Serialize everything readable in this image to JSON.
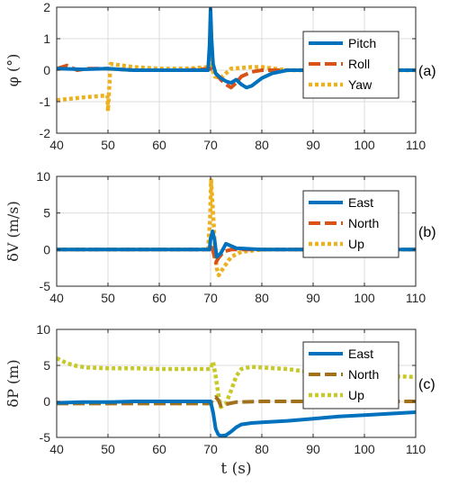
{
  "chart_data": [
    {
      "type": "line",
      "panel_label": "(a)",
      "ylabel": "φ (°)",
      "xlim": [
        40,
        110
      ],
      "ylim": [
        -2,
        2
      ],
      "xticks": [
        40,
        50,
        60,
        70,
        80,
        90,
        100,
        110
      ],
      "yticks": [
        -2,
        -1,
        0,
        1,
        2
      ],
      "grid": true,
      "legend_position": "top-right",
      "series": [
        {
          "name": "Pitch",
          "color": "#0072BD",
          "style": "solid",
          "x": [
            40,
            45,
            50,
            55,
            60,
            65,
            69.5,
            69.8,
            70,
            70.2,
            70.5,
            71,
            72,
            73,
            74,
            75,
            76,
            77,
            78,
            80,
            82,
            85,
            90,
            95,
            100,
            105,
            110
          ],
          "y": [
            0.05,
            0.03,
            0.05,
            0.0,
            0.0,
            0.0,
            0.0,
            0.8,
            1.95,
            1.0,
            0.2,
            -0.1,
            -0.25,
            -0.35,
            -0.4,
            -0.3,
            -0.45,
            -0.55,
            -0.5,
            -0.25,
            -0.1,
            0.0,
            0.0,
            0.0,
            0.0,
            0.0,
            0.0
          ]
        },
        {
          "name": "Roll",
          "color": "#D95319",
          "style": "dashed",
          "x": [
            40,
            42,
            44,
            46,
            50,
            55,
            60,
            65,
            70,
            71,
            72,
            73,
            74,
            75,
            76,
            78,
            80,
            85,
            90,
            100,
            110
          ],
          "y": [
            0.05,
            0.15,
            0.0,
            0.05,
            0.05,
            0.0,
            0.0,
            0.0,
            0.05,
            -0.1,
            -0.3,
            -0.45,
            -0.55,
            -0.4,
            -0.2,
            -0.05,
            0.0,
            0.0,
            0.0,
            0.0,
            0.0
          ]
        },
        {
          "name": "Yaw",
          "color": "#EDB120",
          "style": "dotted",
          "x": [
            40,
            43,
            46,
            49.9,
            50,
            50.5,
            55,
            60,
            65,
            69.9,
            70,
            70.3,
            70.8,
            72,
            74,
            78,
            80,
            85,
            90,
            100,
            110
          ],
          "y": [
            -0.95,
            -0.9,
            -0.85,
            -0.8,
            -1.3,
            0.2,
            0.1,
            0.05,
            0.05,
            0.1,
            0.45,
            0.1,
            -0.2,
            -0.25,
            0.05,
            0.1,
            0.1,
            0.0,
            0.0,
            0.0,
            0.0
          ]
        }
      ]
    },
    {
      "type": "line",
      "panel_label": "(b)",
      "ylabel": "δV (m/s)",
      "xlim": [
        40,
        110
      ],
      "ylim": [
        -5,
        10
      ],
      "xticks": [
        40,
        50,
        60,
        70,
        80,
        90,
        100,
        110
      ],
      "yticks": [
        -5,
        0,
        5,
        10
      ],
      "grid": true,
      "legend_position": "top-right",
      "series": [
        {
          "name": "East",
          "color": "#0072BD",
          "style": "solid",
          "x": [
            40,
            50,
            60,
            69.8,
            70,
            70.4,
            70.8,
            71.2,
            72,
            73,
            75,
            80,
            90,
            100,
            110
          ],
          "y": [
            0,
            0,
            0,
            0,
            1.5,
            2.5,
            1.2,
            -1.0,
            -0.5,
            0.8,
            0.2,
            0,
            0,
            0,
            0
          ]
        },
        {
          "name": "North",
          "color": "#D95319",
          "style": "dashed",
          "x": [
            40,
            50,
            60,
            69.8,
            70.2,
            70.6,
            71,
            71.5,
            72.5,
            74,
            80,
            90,
            100,
            110
          ],
          "y": [
            0,
            0,
            0,
            0,
            0.8,
            -0.5,
            -1.8,
            -1.2,
            -0.3,
            0,
            0,
            0,
            0,
            0
          ]
        },
        {
          "name": "Up",
          "color": "#EDB120",
          "style": "dotted",
          "x": [
            40,
            50,
            60,
            69.5,
            69.9,
            70.1,
            70.4,
            70.8,
            71.2,
            71.6,
            72.5,
            74,
            76,
            80,
            90,
            100,
            110
          ],
          "y": [
            0,
            0,
            0,
            0,
            4.0,
            9.5,
            6.0,
            1.0,
            -2.5,
            -3.5,
            -2.5,
            -1.0,
            -0.3,
            0,
            0,
            0,
            0
          ]
        }
      ]
    },
    {
      "type": "line",
      "panel_label": "(c)",
      "ylabel": "δP (m)",
      "xlabel": "t (s)",
      "xlim": [
        40,
        110
      ],
      "ylim": [
        -5,
        10
      ],
      "xticks": [
        40,
        50,
        60,
        70,
        80,
        90,
        100,
        110
      ],
      "yticks": [
        -5,
        0,
        5,
        10
      ],
      "grid": true,
      "legend_position": "top-right",
      "series": [
        {
          "name": "East",
          "color": "#0072BD",
          "style": "solid",
          "x": [
            40,
            45,
            50,
            55,
            60,
            65,
            69,
            70,
            70.5,
            71,
            71.5,
            72,
            73,
            74,
            75,
            76,
            78,
            80,
            85,
            90,
            95,
            100,
            105,
            110
          ],
          "y": [
            -0.2,
            -0.1,
            -0.1,
            0,
            0,
            0,
            0,
            0,
            -1.5,
            -3.8,
            -4.6,
            -4.8,
            -4.7,
            -4.2,
            -3.6,
            -3.2,
            -3.0,
            -2.9,
            -2.7,
            -2.4,
            -2.1,
            -1.9,
            -1.7,
            -1.5
          ]
        },
        {
          "name": "North",
          "color": "#A2711B",
          "style": "dashed",
          "x": [
            40,
            45,
            50,
            55,
            60,
            65,
            70,
            70.5,
            71,
            71.5,
            72,
            73,
            75,
            80,
            90,
            100,
            110
          ],
          "y": [
            -0.3,
            -0.3,
            -0.3,
            -0.3,
            -0.3,
            -0.3,
            -0.3,
            0.3,
            0.6,
            0.2,
            -0.6,
            -0.4,
            -0.1,
            0,
            0,
            0,
            0
          ]
        },
        {
          "name": "Up",
          "color": "#C8C828",
          "style": "dotted",
          "x": [
            40,
            42,
            44,
            46,
            50,
            55,
            60,
            65,
            69,
            70,
            70.5,
            71,
            71.5,
            72,
            73,
            74,
            75,
            76,
            78,
            80,
            85,
            90,
            95,
            100,
            105,
            110
          ],
          "y": [
            6.0,
            5.3,
            4.9,
            4.7,
            4.6,
            4.6,
            4.5,
            4.5,
            4.5,
            4.5,
            5.5,
            3.5,
            1.0,
            -0.8,
            -0.3,
            1.5,
            3.5,
            4.5,
            4.8,
            4.7,
            4.5,
            4.0,
            3.8,
            3.6,
            3.5,
            3.4
          ]
        }
      ]
    }
  ]
}
